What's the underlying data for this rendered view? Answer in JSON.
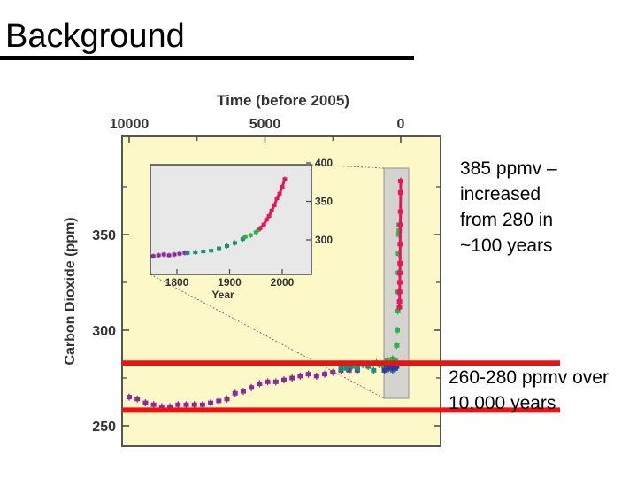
{
  "slide": {
    "title": "Background",
    "note_top": "385 ppmv –\nincreased\nfrom 280 in\n~100 years",
    "note_bottom": "260-280 ppmv over\n10,000 years"
  },
  "colors": {
    "panel_bg": "#fdf8c8",
    "inset_bg": "#e8e8e8",
    "ice_core_purple": "#8a2b9c",
    "ice_core_teal": "#1a8f7a",
    "ice_core_green": "#2fb04a",
    "ice_core_blue": "#2b3c9a",
    "atmospheric_red": "#e8155a",
    "highlight_red": "#ee1111"
  },
  "chart_data": [
    {
      "type": "scatter",
      "title": "Time (before 2005)",
      "xlabel": "",
      "ylabel": "Carbon Dioxide (ppm)",
      "x_ticks": [
        10000,
        5000,
        0
      ],
      "y_ticks": [
        250,
        300,
        350
      ],
      "xlim": [
        10000,
        0
      ],
      "ylim": [
        245,
        405
      ],
      "series": [
        {
          "color_key": "ice_core_purple",
          "x": [
            10000,
            9700,
            9400,
            9100,
            8800,
            8500,
            8200,
            7900,
            7600,
            7300,
            7000,
            6700,
            6400,
            6100,
            5800,
            5500,
            5200,
            4900,
            4600,
            4300,
            4000,
            3700,
            3400,
            3100,
            2800,
            2500,
            2200,
            1900,
            1600
          ],
          "y": [
            265,
            264,
            262,
            261,
            260,
            260,
            261,
            261,
            261,
            261,
            262,
            263,
            264,
            267,
            268,
            270,
            272,
            273,
            273,
            274,
            275,
            276,
            277,
            276,
            277,
            278,
            279,
            279,
            279
          ]
        },
        {
          "color_key": "ice_core_teal",
          "x": [
            2200,
            2000,
            1800,
            1600,
            1400,
            1200,
            1000,
            800,
            600,
            400,
            300,
            200
          ],
          "y": [
            280,
            280,
            281,
            280,
            282,
            281,
            279,
            282,
            280,
            282,
            279,
            280
          ]
        },
        {
          "color_key": "ice_core_green",
          "x": [
            900,
            700,
            500,
            400,
            300,
            250,
            200
          ],
          "y": [
            283,
            282,
            284,
            281,
            285,
            283,
            284
          ]
        },
        {
          "color_key": "ice_core_blue",
          "x": [
            600,
            450,
            350,
            300,
            250,
            200,
            150
          ],
          "y": [
            279,
            280,
            281,
            280,
            282,
            280,
            281
          ]
        },
        {
          "color_key": "ice_core_green",
          "x": [
            150,
            130,
            110,
            100,
            90,
            80,
            70,
            60,
            55
          ],
          "y": [
            292,
            300,
            310,
            320,
            330,
            340,
            350,
            355,
            352
          ]
        },
        {
          "color_key": "atmospheric_red",
          "x": [
            50,
            45,
            40,
            35,
            30,
            25,
            20,
            15,
            10,
            5,
            1
          ],
          "y": [
            312,
            315,
            320,
            325,
            330,
            335,
            345,
            355,
            362,
            372,
            378
          ]
        }
      ],
      "highlight_band": {
        "low": 260,
        "high": 280
      }
    },
    {
      "type": "scatter",
      "xlabel": "Year",
      "ylabel": "",
      "x_ticks": [
        1800,
        1900,
        2000
      ],
      "y_ticks": [
        300,
        350,
        400
      ],
      "xlim": [
        1750,
        2010
      ],
      "ylim": [
        275,
        405
      ],
      "series": [
        {
          "color_key": "ice_core_purple",
          "x": [
            1755,
            1765,
            1775,
            1785,
            1795,
            1805,
            1815
          ],
          "y": [
            279,
            280,
            281,
            280,
            281,
            282,
            283
          ]
        },
        {
          "color_key": "ice_core_teal",
          "x": [
            1820,
            1835,
            1850,
            1865,
            1880,
            1895,
            1910,
            1925
          ],
          "y": [
            283,
            284,
            285,
            286,
            289,
            292,
            296,
            301
          ]
        },
        {
          "color_key": "ice_core_green",
          "x": [
            1930,
            1940,
            1950,
            1955
          ],
          "y": [
            304,
            306,
            310,
            313
          ]
        },
        {
          "color_key": "atmospheric_red",
          "x": [
            1958,
            1965,
            1970,
            1975,
            1980,
            1985,
            1990,
            1995,
            2000,
            2005
          ],
          "y": [
            315,
            320,
            326,
            331,
            338,
            345,
            354,
            360,
            369,
            379
          ]
        }
      ]
    }
  ]
}
